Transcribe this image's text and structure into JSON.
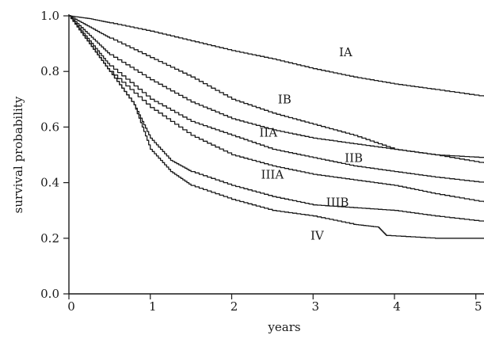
{
  "chart_data": {
    "type": "line",
    "title": "",
    "xlabel": "years",
    "ylabel": "survival probability",
    "xlim": [
      0,
      5.1
    ],
    "ylim": [
      0.0,
      1.0
    ],
    "xticks": [
      0,
      1,
      2,
      3,
      4,
      5
    ],
    "xtick_labels": [
      "0",
      "1",
      "2",
      "3",
      "4",
      "5"
    ],
    "yticks": [
      0.0,
      0.2,
      0.4,
      0.6,
      0.8,
      1.0
    ],
    "ytick_labels": [
      "0.0",
      "0.2",
      "0.4",
      "0.6",
      "0.8",
      "1.0"
    ],
    "grid": false,
    "legend": "none",
    "series": [
      {
        "name": "IA",
        "x": [
          0,
          0.25,
          0.5,
          1.0,
          1.5,
          2.0,
          2.5,
          3.0,
          3.5,
          4.0,
          4.5,
          5.1
        ],
        "y": [
          1.0,
          0.99,
          0.975,
          0.945,
          0.91,
          0.875,
          0.845,
          0.81,
          0.78,
          0.755,
          0.735,
          0.71
        ]
      },
      {
        "name": "IB",
        "x": [
          0,
          0.25,
          0.5,
          1.0,
          1.5,
          2.0,
          2.5,
          3.0,
          3.5,
          4.0,
          4.5,
          5.1
        ],
        "y": [
          1.0,
          0.96,
          0.92,
          0.85,
          0.78,
          0.7,
          0.65,
          0.61,
          0.57,
          0.52,
          0.5,
          0.47
        ]
      },
      {
        "name": "IIA",
        "x": [
          0,
          0.25,
          0.5,
          1.0,
          1.5,
          2.0,
          2.5,
          3.0,
          3.5,
          4.0,
          4.5,
          5.1
        ],
        "y": [
          1.0,
          0.93,
          0.86,
          0.77,
          0.69,
          0.63,
          0.59,
          0.56,
          0.54,
          0.52,
          0.5,
          0.49
        ]
      },
      {
        "name": "IIB",
        "x": [
          0,
          0.25,
          0.5,
          1.0,
          1.5,
          2.0,
          2.5,
          3.0,
          3.5,
          4.0,
          4.5,
          5.1
        ],
        "y": [
          1.0,
          0.91,
          0.82,
          0.7,
          0.62,
          0.57,
          0.52,
          0.49,
          0.46,
          0.44,
          0.42,
          0.4
        ]
      },
      {
        "name": "IIIA",
        "x": [
          0,
          0.25,
          0.5,
          1.0,
          1.5,
          2.0,
          2.5,
          3.0,
          3.5,
          4.0,
          4.5,
          5.1
        ],
        "y": [
          1.0,
          0.9,
          0.8,
          0.67,
          0.57,
          0.5,
          0.46,
          0.43,
          0.41,
          0.39,
          0.36,
          0.33
        ]
      },
      {
        "name": "IIIB",
        "x": [
          0,
          0.25,
          0.5,
          0.8,
          1.0,
          1.25,
          1.5,
          2.0,
          2.5,
          3.0,
          3.5,
          4.0,
          4.5,
          5.1
        ],
        "y": [
          1.0,
          0.9,
          0.8,
          0.68,
          0.56,
          0.48,
          0.44,
          0.39,
          0.35,
          0.32,
          0.31,
          0.3,
          0.28,
          0.26
        ]
      },
      {
        "name": "IV",
        "x": [
          0,
          0.25,
          0.5,
          0.8,
          1.0,
          1.25,
          1.5,
          2.0,
          2.5,
          3.0,
          3.5,
          3.8,
          3.9,
          4.5,
          5.1
        ],
        "y": [
          1.0,
          0.9,
          0.8,
          0.68,
          0.52,
          0.44,
          0.39,
          0.34,
          0.3,
          0.28,
          0.25,
          0.24,
          0.21,
          0.2,
          0.2
        ]
      }
    ],
    "annotations": [
      {
        "text": "IA",
        "x": 3.4,
        "y": 0.855
      },
      {
        "text": "IB",
        "x": 2.65,
        "y": 0.685
      },
      {
        "text": "IIA",
        "x": 2.45,
        "y": 0.565
      },
      {
        "text": "IIB",
        "x": 3.5,
        "y": 0.475
      },
      {
        "text": "IIIA",
        "x": 2.5,
        "y": 0.415
      },
      {
        "text": "IIIB",
        "x": 3.3,
        "y": 0.315
      },
      {
        "text": "IV",
        "x": 3.05,
        "y": 0.195
      }
    ]
  }
}
